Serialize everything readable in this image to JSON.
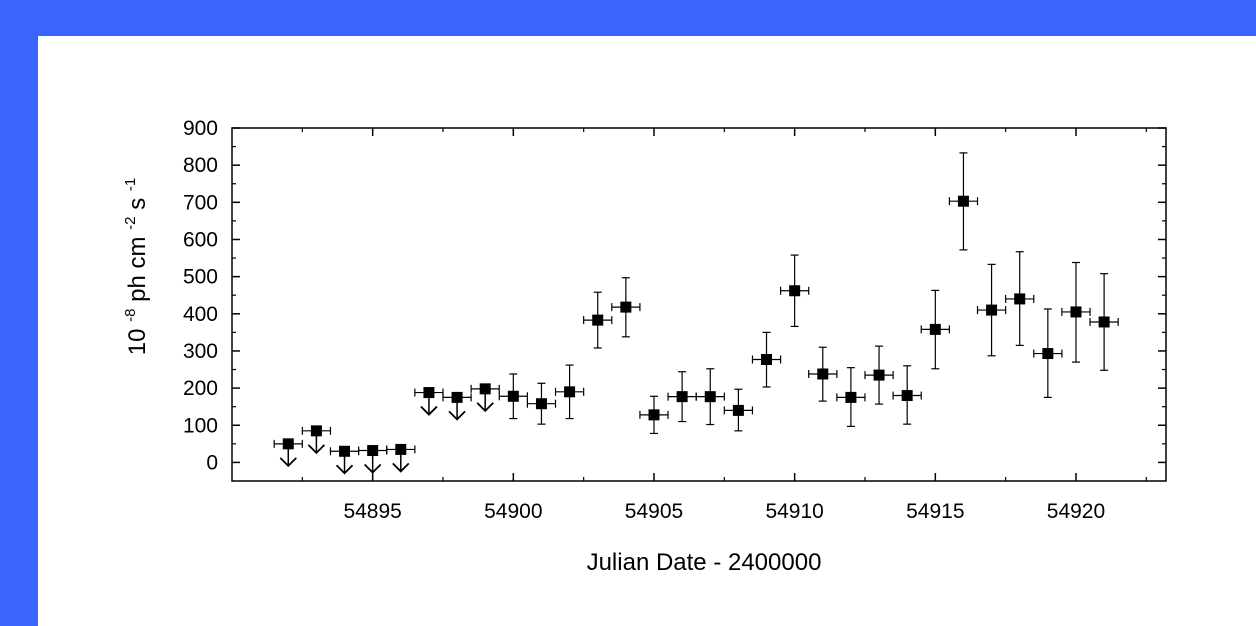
{
  "chart_data": {
    "type": "scatter",
    "xlabel": "Julian Date - 2400000",
    "ylabel": {
      "base": "10",
      "exp1": "-8",
      "mid": " ph cm",
      "exp2": "-2",
      "unit": " s",
      "exp3": "-1"
    },
    "xlim": [
      54890,
      54923.2
    ],
    "ylim": [
      -50,
      900
    ],
    "x_ticks": [
      54895,
      54900,
      54905,
      54910,
      54915,
      54920
    ],
    "y_ticks": [
      0,
      100,
      200,
      300,
      400,
      500,
      600,
      700,
      800,
      900
    ],
    "grid": false,
    "x_err": 0.5,
    "points": [
      {
        "x": 54892,
        "y": 50,
        "upper_limit": true
      },
      {
        "x": 54893,
        "y": 85,
        "upper_limit": true
      },
      {
        "x": 54894,
        "y": 30,
        "upper_limit": true
      },
      {
        "x": 54895,
        "y": 32,
        "upper_limit": true
      },
      {
        "x": 54896,
        "y": 35,
        "upper_limit": true
      },
      {
        "x": 54897,
        "y": 188,
        "upper_limit": true
      },
      {
        "x": 54898,
        "y": 175,
        "upper_limit": true
      },
      {
        "x": 54899,
        "y": 198,
        "upper_limit": true
      },
      {
        "x": 54900,
        "y": 178,
        "lo": 118,
        "hi": 238
      },
      {
        "x": 54901,
        "y": 158,
        "lo": 103,
        "hi": 213
      },
      {
        "x": 54902,
        "y": 190,
        "lo": 118,
        "hi": 262
      },
      {
        "x": 54903,
        "y": 383,
        "lo": 308,
        "hi": 458
      },
      {
        "x": 54904,
        "y": 418,
        "lo": 338,
        "hi": 497
      },
      {
        "x": 54905,
        "y": 128,
        "lo": 78,
        "hi": 178
      },
      {
        "x": 54906,
        "y": 177,
        "lo": 110,
        "hi": 244
      },
      {
        "x": 54907,
        "y": 177,
        "lo": 102,
        "hi": 252
      },
      {
        "x": 54908,
        "y": 140,
        "lo": 85,
        "hi": 197
      },
      {
        "x": 54909,
        "y": 277,
        "lo": 203,
        "hi": 350
      },
      {
        "x": 54910,
        "y": 462,
        "lo": 366,
        "hi": 558
      },
      {
        "x": 54911,
        "y": 238,
        "lo": 165,
        "hi": 310
      },
      {
        "x": 54912,
        "y": 175,
        "lo": 97,
        "hi": 255
      },
      {
        "x": 54913,
        "y": 235,
        "lo": 157,
        "hi": 313
      },
      {
        "x": 54914,
        "y": 180,
        "lo": 103,
        "hi": 260
      },
      {
        "x": 54915,
        "y": 358,
        "lo": 252,
        "hi": 463
      },
      {
        "x": 54916,
        "y": 703,
        "lo": 572,
        "hi": 833
      },
      {
        "x": 54917,
        "y": 410,
        "lo": 287,
        "hi": 533
      },
      {
        "x": 54918,
        "y": 440,
        "lo": 315,
        "hi": 567
      },
      {
        "x": 54919,
        "y": 293,
        "lo": 175,
        "hi": 413
      },
      {
        "x": 54920,
        "y": 405,
        "lo": 270,
        "hi": 538
      },
      {
        "x": 54921,
        "y": 378,
        "lo": 248,
        "hi": 508
      }
    ]
  }
}
